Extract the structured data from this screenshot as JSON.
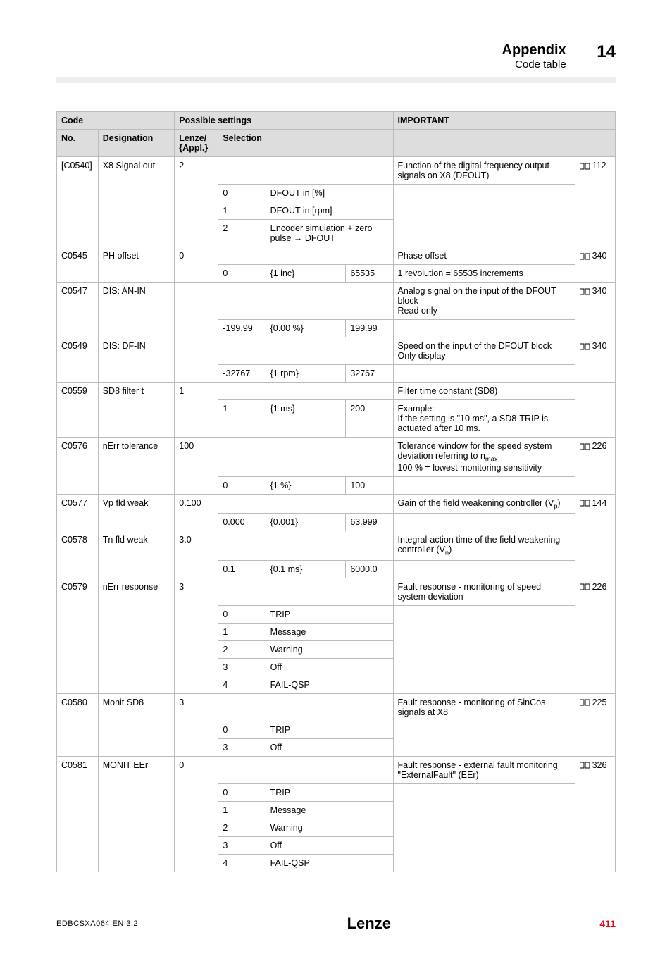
{
  "header": {
    "title": "Appendix",
    "subtitle": "Code table",
    "chapter": "14"
  },
  "tableHeaders": {
    "code": "Code",
    "possible": "Possible settings",
    "important": "IMPORTANT",
    "no": "No.",
    "designation": "Designation",
    "lenze": "Lenze/\n{Appl.}",
    "selection": "Selection"
  },
  "rows": {
    "c0540": {
      "no": "[C0540]",
      "name": "X8 Signal out",
      "lenze": "2",
      "desc_html": "Function of the digital frequency output signals on X8 (DFOUT)",
      "ref": "112",
      "opts": [
        {
          "v": "0",
          "t": "DFOUT in [%]"
        },
        {
          "v": "1",
          "t": "DFOUT in [rpm]"
        },
        {
          "v": "2",
          "t_html": "Encoder simulation + zero pulse &rarr; DFOUT"
        }
      ]
    },
    "c0545": {
      "no": "C0545",
      "name": "PH offset",
      "lenze": "0",
      "desc": "Phase offset",
      "ref": "340",
      "range": {
        "min": "0",
        "step": "{1 inc}",
        "max": "65535"
      },
      "range_desc": "1 revolution = 65535 increments"
    },
    "c0547": {
      "no": "C0547",
      "name": "DIS: AN-IN",
      "lenze": "",
      "desc_html": "Analog signal on the input of the DFOUT block<br>Read only",
      "ref": "340",
      "range": {
        "min": "-199.99",
        "step": "{0.00 %}",
        "max": "199.99"
      }
    },
    "c0549": {
      "no": "C0549",
      "name": "DIS: DF-IN",
      "lenze": "",
      "desc_html": "Speed on the input of the DFOUT block<br>Only display",
      "ref": "340",
      "range": {
        "min": "-32767",
        "step": "{1 rpm}",
        "max": "32767"
      }
    },
    "c0559": {
      "no": "C0559",
      "name": "SD8 filter t",
      "lenze": "1",
      "desc": "Filter time constant (SD8)",
      "range": {
        "min": "1",
        "step": "{1 ms}",
        "max": "200"
      },
      "range_desc_html": "Example:<br>If the setting is \"10 ms\", a SD8-TRIP is actuated after 10 ms."
    },
    "c0576": {
      "no": "C0576",
      "name": "nErr tolerance",
      "lenze": "100",
      "desc_html": "Tolerance window for the speed system deviation referring to n<sub>max</sub><br>100 % = lowest monitoring sensitivity",
      "ref": "226",
      "range": {
        "min": "0",
        "step": "{1 %}",
        "max": "100"
      }
    },
    "c0577": {
      "no": "C0577",
      "name": "Vp fld weak",
      "lenze": "0.100",
      "desc_html": "Gain of the field weakening controller (V<sub>p</sub>)",
      "ref": "144",
      "range": {
        "min": "0.000",
        "step": "{0.001}",
        "max": "63.999"
      }
    },
    "c0578": {
      "no": "C0578",
      "name": "Tn fld weak",
      "lenze": "3.0",
      "desc_html": "Integral-action time of the field weakening controller (V<sub>n</sub>)",
      "range": {
        "min": "0.1",
        "step": "{0.1 ms}",
        "max": "6000.0"
      }
    },
    "c0579": {
      "no": "C0579",
      "name": "nErr response",
      "lenze": "3",
      "desc_html": "Fault response - monitoring of speed system deviation",
      "ref": "226",
      "opts": [
        {
          "v": "0",
          "t": "TRIP"
        },
        {
          "v": "1",
          "t": "Message"
        },
        {
          "v": "2",
          "t": "Warning"
        },
        {
          "v": "3",
          "t": "Off"
        },
        {
          "v": "4",
          "t": "FAIL-QSP"
        }
      ]
    },
    "c0580": {
      "no": "C0580",
      "name": "Monit SD8",
      "lenze": "3",
      "desc_html": "Fault response - monitoring of SinCos signals at X8",
      "ref": "225",
      "opts": [
        {
          "v": "0",
          "t": "TRIP"
        },
        {
          "v": "3",
          "t": "Off"
        }
      ]
    },
    "c0581": {
      "no": "C0581",
      "name": "MONIT EEr",
      "lenze": "0",
      "desc_html": "Fault response - external fault monitoring \"ExternalFault\" (EEr)",
      "ref": "326",
      "opts": [
        {
          "v": "0",
          "t": "TRIP"
        },
        {
          "v": "1",
          "t": "Message"
        },
        {
          "v": "2",
          "t": "Warning"
        },
        {
          "v": "3",
          "t": "Off"
        },
        {
          "v": "4",
          "t": "FAIL-QSP"
        }
      ]
    }
  },
  "footer": {
    "left": "EDBCSXA064  EN  3.2",
    "brand": "Lenze",
    "page": "411"
  }
}
